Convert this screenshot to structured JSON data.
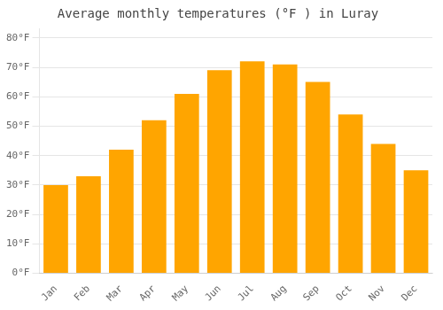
{
  "chart_data": {
    "type": "bar",
    "title": "Average monthly temperatures (°F ) in Luray",
    "categories": [
      "Jan",
      "Feb",
      "Mar",
      "Apr",
      "May",
      "Jun",
      "Jul",
      "Aug",
      "Sep",
      "Oct",
      "Nov",
      "Dec"
    ],
    "values": [
      30,
      33,
      42,
      52,
      61,
      69,
      72,
      71,
      65,
      54,
      44,
      35
    ],
    "color": "#FFA500",
    "ylim": [
      0,
      83
    ],
    "yticks": [
      {
        "value": 0,
        "label": "0°F"
      },
      {
        "value": 10,
        "label": "10°F"
      },
      {
        "value": 20,
        "label": "20°F"
      },
      {
        "value": 30,
        "label": "30°F"
      },
      {
        "value": 40,
        "label": "40°F"
      },
      {
        "value": 50,
        "label": "50°F"
      },
      {
        "value": 60,
        "label": "60°F"
      },
      {
        "value": 70,
        "label": "70°F"
      },
      {
        "value": 80,
        "label": "80°F"
      }
    ],
    "grid": true
  }
}
